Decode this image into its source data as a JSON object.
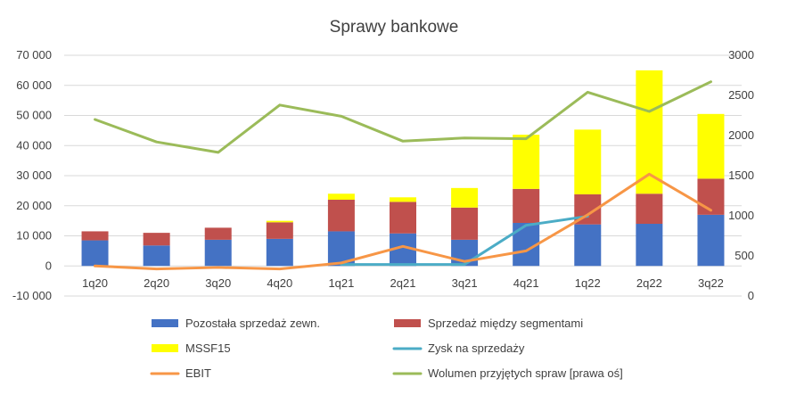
{
  "chart_data": {
    "type": "bar",
    "title": "Sprawy bankowe",
    "categories": [
      "1q20",
      "2q20",
      "3q20",
      "4q20",
      "1q21",
      "2q21",
      "3q21",
      "4q21",
      "1q22",
      "2q22",
      "3q22"
    ],
    "y_left": {
      "min": -10000,
      "max": 70000,
      "step": 10000,
      "tick_labels": [
        "-10 000",
        "0",
        "10 000",
        "20 000",
        "30 000",
        "40 000",
        "50 000",
        "60 000",
        "70 000"
      ]
    },
    "y_right": {
      "min": 0,
      "max": 3000,
      "step": 500,
      "tick_labels": [
        "0",
        "500",
        "1000",
        "1500",
        "2000",
        "2500",
        "3000"
      ]
    },
    "grid": true,
    "legend_position": "bottom",
    "stacked_bars": [
      {
        "name": "Pozostała sprzedaż zewn.",
        "color": "#4472C4",
        "values": [
          8500,
          6800,
          8700,
          9000,
          11500,
          10800,
          8700,
          14300,
          13800,
          14000,
          17000
        ]
      },
      {
        "name": "Sprzedaż między segmentami",
        "color": "#C0504D",
        "values": [
          3000,
          4200,
          4000,
          5500,
          10500,
          10500,
          10700,
          11300,
          10000,
          10000,
          12000
        ]
      },
      {
        "name": "MSSF15",
        "color": "#FFFF00",
        "values": [
          0,
          0,
          0,
          500,
          2000,
          1500,
          6500,
          18000,
          21500,
          41000,
          21500
        ]
      }
    ],
    "lines": [
      {
        "name": "Zysk na sprzedaży",
        "color": "#4BACC6",
        "axis": "left",
        "values": [
          null,
          null,
          null,
          null,
          500,
          500,
          500,
          13500,
          16500,
          null,
          null
        ]
      },
      {
        "name": "EBIT",
        "color": "#F79646",
        "axis": "left",
        "values": [
          0,
          -1000,
          -500,
          -1000,
          1000,
          6500,
          1500,
          5000,
          17000,
          30500,
          18500
        ]
      },
      {
        "name": "Wolumen przyjętych spraw [prawa oś]",
        "color": "#9BBB59",
        "axis": "right",
        "values": [
          2200,
          1920,
          1790,
          2380,
          2240,
          1930,
          1970,
          1960,
          2540,
          2300,
          2670
        ]
      }
    ],
    "legend": [
      {
        "label": "Pozostała sprzedaż zewn.",
        "kind": "box",
        "color": "#4472C4"
      },
      {
        "label": "Sprzedaż między segmentami",
        "kind": "box",
        "color": "#C0504D"
      },
      {
        "label": "MSSF15",
        "kind": "box",
        "color": "#FFFF00"
      },
      {
        "label": "Zysk na sprzedaży",
        "kind": "line",
        "color": "#4BACC6"
      },
      {
        "label": "EBIT",
        "kind": "line",
        "color": "#F79646"
      },
      {
        "label": "Wolumen przyjętych spraw [prawa oś]",
        "kind": "line",
        "color": "#9BBB59"
      }
    ]
  }
}
